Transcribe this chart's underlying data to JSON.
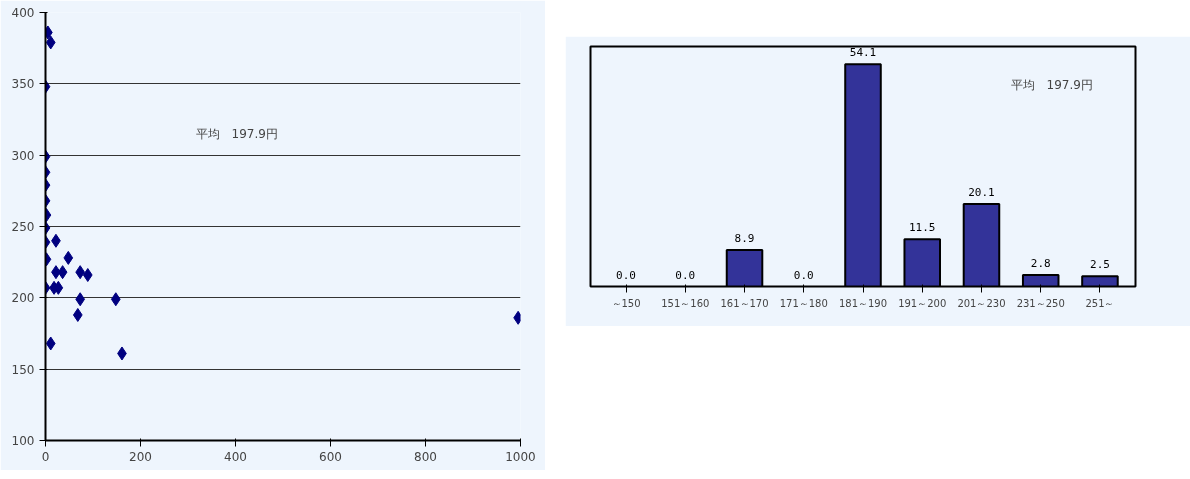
{
  "chart_data": [
    {
      "type": "scatter",
      "x": [
        5,
        11,
        0,
        0,
        0,
        0,
        0,
        2,
        0,
        0,
        22,
        2,
        48,
        22,
        36,
        73,
        89,
        0,
        18,
        27,
        73,
        148,
        68,
        11,
        161,
        995
      ],
      "values": [
        386,
        379,
        348,
        299,
        288,
        279,
        268,
        258,
        249,
        239,
        240,
        227,
        228,
        218,
        218,
        218,
        216,
        207,
        207,
        207,
        199,
        199,
        188,
        168,
        161,
        186
      ],
      "color": "#000080",
      "marker": "diamond",
      "xlim": [
        0,
        1000
      ],
      "ylim": [
        100,
        400
      ],
      "xticks": [
        0,
        200,
        400,
        600,
        800,
        1000
      ],
      "yticks": [
        100,
        150,
        200,
        250,
        300,
        350,
        400
      ],
      "grid": "y",
      "annotations": [
        "平均　197.9円"
      ]
    },
    {
      "type": "bar",
      "categories": [
        "～150",
        "151～160",
        "161～170",
        "171～180",
        "181～190",
        "191～200",
        "201～230",
        "231～250",
        "251～"
      ],
      "values": [
        0,
        0,
        8.9,
        0,
        54.1,
        11.5,
        20.1,
        2.8,
        2.5
      ],
      "value_labels": [
        "0.0",
        "0.0",
        "8.9",
        "0.0",
        "54.1",
        "11.5",
        "20.1",
        "2.8",
        "2.5"
      ],
      "color": "#333399",
      "annotations": [
        "平均　197.9円"
      ]
    }
  ]
}
